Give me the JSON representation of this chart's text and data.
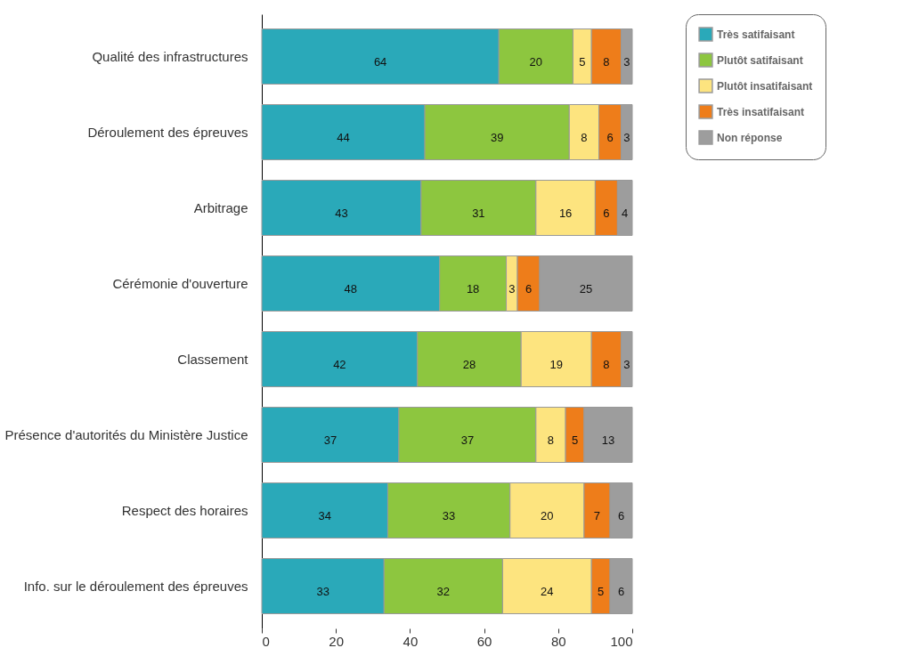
{
  "chart_data": {
    "type": "bar",
    "orientation": "horizontal",
    "stacked": true,
    "data_labels": true,
    "grid": false,
    "legend": "top right",
    "categories": [
      "Qualité des infrastructures",
      "Déroulement des épreuves",
      "Arbitrage",
      "Cérémonie d'ouverture",
      "Classement",
      "Présence d'autorités du Ministère Justice",
      "Respect des horaires",
      "Info. sur le déroulement des épreuves"
    ],
    "series": [
      {
        "name": "Très satifaisant",
        "color": "#2aa9b9",
        "values": [
          64,
          44,
          43,
          48,
          42,
          37,
          34,
          33
        ]
      },
      {
        "name": "Plutôt satifaisant",
        "color": "#8dc63f",
        "values": [
          20,
          39,
          31,
          18,
          28,
          37,
          33,
          32
        ]
      },
      {
        "name": "Plutôt insatifaisant",
        "color": "#fde47f",
        "values": [
          5,
          8,
          16,
          3,
          19,
          8,
          20,
          24
        ]
      },
      {
        "name": "Très insatifaisant",
        "color": "#ee7d1a",
        "values": [
          8,
          6,
          6,
          6,
          8,
          5,
          7,
          5
        ]
      },
      {
        "name": "Non réponse",
        "color": "#9d9d9d",
        "values": [
          3,
          3,
          4,
          25,
          3,
          13,
          6,
          6
        ]
      }
    ],
    "xlim": [
      0,
      100
    ],
    "xticks": [
      0,
      20,
      40,
      60,
      80,
      100
    ]
  }
}
